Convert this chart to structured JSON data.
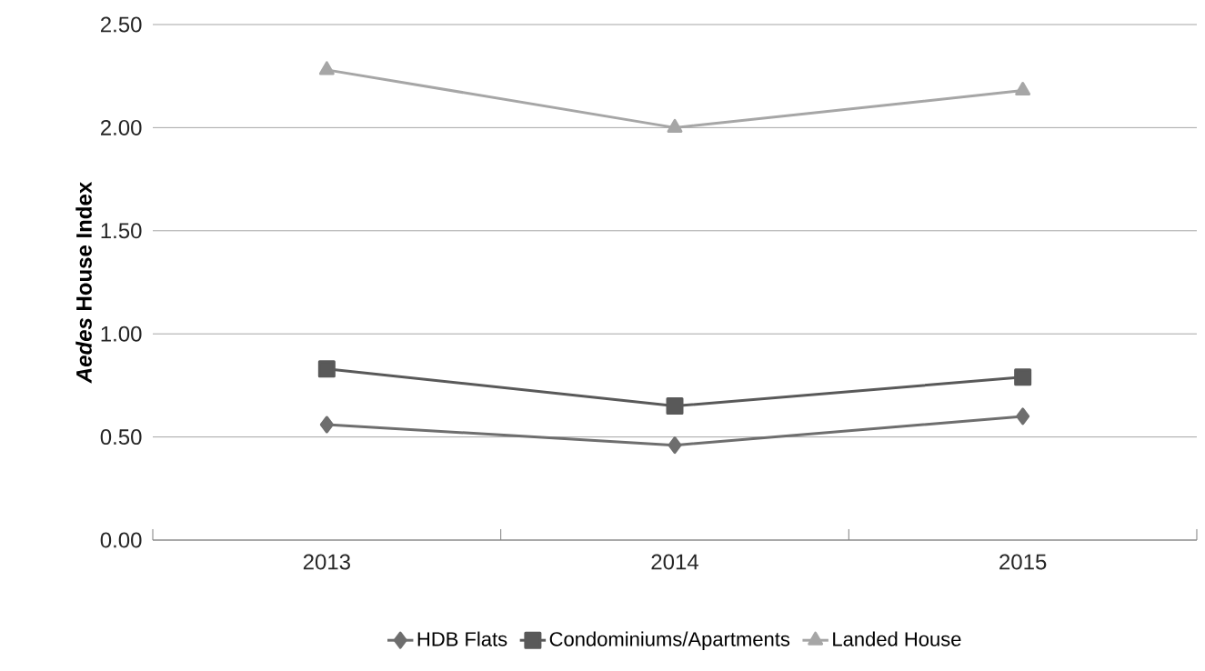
{
  "chart_data": {
    "type": "line",
    "ylabel": "*Aedes* House Index",
    "categories": [
      "2013",
      "2014",
      "2015"
    ],
    "series": [
      {
        "name": "HDB Flats",
        "color": "#6e6e6e",
        "marker": "diamond",
        "values": [
          0.56,
          0.46,
          0.6
        ]
      },
      {
        "name": "Condominiums/Apartments",
        "color": "#595959",
        "marker": "square",
        "values": [
          0.83,
          0.65,
          0.79
        ]
      },
      {
        "name": "Landed House",
        "color": "#a6a6a6",
        "marker": "triangle",
        "values": [
          2.28,
          2.0,
          2.18
        ]
      }
    ],
    "ylim": [
      0,
      2.5
    ],
    "yticks": [
      {
        "value": 0,
        "label": "0.00"
      },
      {
        "value": 0.5,
        "label": "0.50"
      },
      {
        "value": 1,
        "label": "1.00"
      },
      {
        "value": 1.5,
        "label": "1.50"
      },
      {
        "value": 2,
        "label": "2.00"
      },
      {
        "value": 2.5,
        "label": "2.50"
      }
    ],
    "grid": "y",
    "legend": "bottom",
    "line_style": "solid"
  }
}
